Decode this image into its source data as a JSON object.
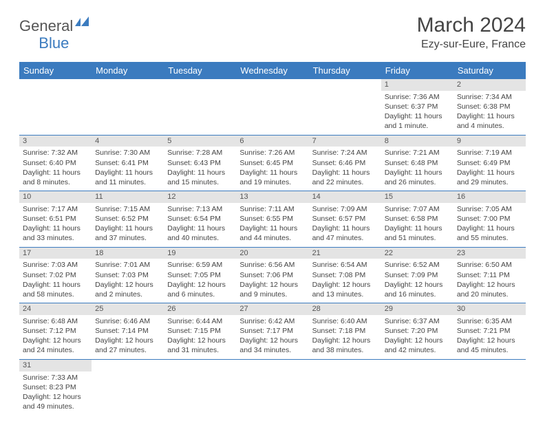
{
  "logo": {
    "general": "General",
    "blue": "Blue"
  },
  "title": "March 2024",
  "location": "Ezy-sur-Eure, France",
  "colors": {
    "header_bg": "#3b7bbf",
    "header_text": "#ffffff",
    "daynum_bg": "#e4e4e4",
    "border": "#3b7bbf",
    "page_bg": "#ffffff",
    "text": "#444444"
  },
  "weekdays": [
    "Sunday",
    "Monday",
    "Tuesday",
    "Wednesday",
    "Thursday",
    "Friday",
    "Saturday"
  ],
  "weeks": [
    [
      null,
      null,
      null,
      null,
      null,
      {
        "n": "1",
        "sunrise": "Sunrise: 7:36 AM",
        "sunset": "Sunset: 6:37 PM",
        "day": "Daylight: 11 hours and 1 minute."
      },
      {
        "n": "2",
        "sunrise": "Sunrise: 7:34 AM",
        "sunset": "Sunset: 6:38 PM",
        "day": "Daylight: 11 hours and 4 minutes."
      }
    ],
    [
      {
        "n": "3",
        "sunrise": "Sunrise: 7:32 AM",
        "sunset": "Sunset: 6:40 PM",
        "day": "Daylight: 11 hours and 8 minutes."
      },
      {
        "n": "4",
        "sunrise": "Sunrise: 7:30 AM",
        "sunset": "Sunset: 6:41 PM",
        "day": "Daylight: 11 hours and 11 minutes."
      },
      {
        "n": "5",
        "sunrise": "Sunrise: 7:28 AM",
        "sunset": "Sunset: 6:43 PM",
        "day": "Daylight: 11 hours and 15 minutes."
      },
      {
        "n": "6",
        "sunrise": "Sunrise: 7:26 AM",
        "sunset": "Sunset: 6:45 PM",
        "day": "Daylight: 11 hours and 19 minutes."
      },
      {
        "n": "7",
        "sunrise": "Sunrise: 7:24 AM",
        "sunset": "Sunset: 6:46 PM",
        "day": "Daylight: 11 hours and 22 minutes."
      },
      {
        "n": "8",
        "sunrise": "Sunrise: 7:21 AM",
        "sunset": "Sunset: 6:48 PM",
        "day": "Daylight: 11 hours and 26 minutes."
      },
      {
        "n": "9",
        "sunrise": "Sunrise: 7:19 AM",
        "sunset": "Sunset: 6:49 PM",
        "day": "Daylight: 11 hours and 29 minutes."
      }
    ],
    [
      {
        "n": "10",
        "sunrise": "Sunrise: 7:17 AM",
        "sunset": "Sunset: 6:51 PM",
        "day": "Daylight: 11 hours and 33 minutes."
      },
      {
        "n": "11",
        "sunrise": "Sunrise: 7:15 AM",
        "sunset": "Sunset: 6:52 PM",
        "day": "Daylight: 11 hours and 37 minutes."
      },
      {
        "n": "12",
        "sunrise": "Sunrise: 7:13 AM",
        "sunset": "Sunset: 6:54 PM",
        "day": "Daylight: 11 hours and 40 minutes."
      },
      {
        "n": "13",
        "sunrise": "Sunrise: 7:11 AM",
        "sunset": "Sunset: 6:55 PM",
        "day": "Daylight: 11 hours and 44 minutes."
      },
      {
        "n": "14",
        "sunrise": "Sunrise: 7:09 AM",
        "sunset": "Sunset: 6:57 PM",
        "day": "Daylight: 11 hours and 47 minutes."
      },
      {
        "n": "15",
        "sunrise": "Sunrise: 7:07 AM",
        "sunset": "Sunset: 6:58 PM",
        "day": "Daylight: 11 hours and 51 minutes."
      },
      {
        "n": "16",
        "sunrise": "Sunrise: 7:05 AM",
        "sunset": "Sunset: 7:00 PM",
        "day": "Daylight: 11 hours and 55 minutes."
      }
    ],
    [
      {
        "n": "17",
        "sunrise": "Sunrise: 7:03 AM",
        "sunset": "Sunset: 7:02 PM",
        "day": "Daylight: 11 hours and 58 minutes."
      },
      {
        "n": "18",
        "sunrise": "Sunrise: 7:01 AM",
        "sunset": "Sunset: 7:03 PM",
        "day": "Daylight: 12 hours and 2 minutes."
      },
      {
        "n": "19",
        "sunrise": "Sunrise: 6:59 AM",
        "sunset": "Sunset: 7:05 PM",
        "day": "Daylight: 12 hours and 6 minutes."
      },
      {
        "n": "20",
        "sunrise": "Sunrise: 6:56 AM",
        "sunset": "Sunset: 7:06 PM",
        "day": "Daylight: 12 hours and 9 minutes."
      },
      {
        "n": "21",
        "sunrise": "Sunrise: 6:54 AM",
        "sunset": "Sunset: 7:08 PM",
        "day": "Daylight: 12 hours and 13 minutes."
      },
      {
        "n": "22",
        "sunrise": "Sunrise: 6:52 AM",
        "sunset": "Sunset: 7:09 PM",
        "day": "Daylight: 12 hours and 16 minutes."
      },
      {
        "n": "23",
        "sunrise": "Sunrise: 6:50 AM",
        "sunset": "Sunset: 7:11 PM",
        "day": "Daylight: 12 hours and 20 minutes."
      }
    ],
    [
      {
        "n": "24",
        "sunrise": "Sunrise: 6:48 AM",
        "sunset": "Sunset: 7:12 PM",
        "day": "Daylight: 12 hours and 24 minutes."
      },
      {
        "n": "25",
        "sunrise": "Sunrise: 6:46 AM",
        "sunset": "Sunset: 7:14 PM",
        "day": "Daylight: 12 hours and 27 minutes."
      },
      {
        "n": "26",
        "sunrise": "Sunrise: 6:44 AM",
        "sunset": "Sunset: 7:15 PM",
        "day": "Daylight: 12 hours and 31 minutes."
      },
      {
        "n": "27",
        "sunrise": "Sunrise: 6:42 AM",
        "sunset": "Sunset: 7:17 PM",
        "day": "Daylight: 12 hours and 34 minutes."
      },
      {
        "n": "28",
        "sunrise": "Sunrise: 6:40 AM",
        "sunset": "Sunset: 7:18 PM",
        "day": "Daylight: 12 hours and 38 minutes."
      },
      {
        "n": "29",
        "sunrise": "Sunrise: 6:37 AM",
        "sunset": "Sunset: 7:20 PM",
        "day": "Daylight: 12 hours and 42 minutes."
      },
      {
        "n": "30",
        "sunrise": "Sunrise: 6:35 AM",
        "sunset": "Sunset: 7:21 PM",
        "day": "Daylight: 12 hours and 45 minutes."
      }
    ],
    [
      {
        "n": "31",
        "sunrise": "Sunrise: 7:33 AM",
        "sunset": "Sunset: 8:23 PM",
        "day": "Daylight: 12 hours and 49 minutes."
      },
      null,
      null,
      null,
      null,
      null,
      null
    ]
  ]
}
